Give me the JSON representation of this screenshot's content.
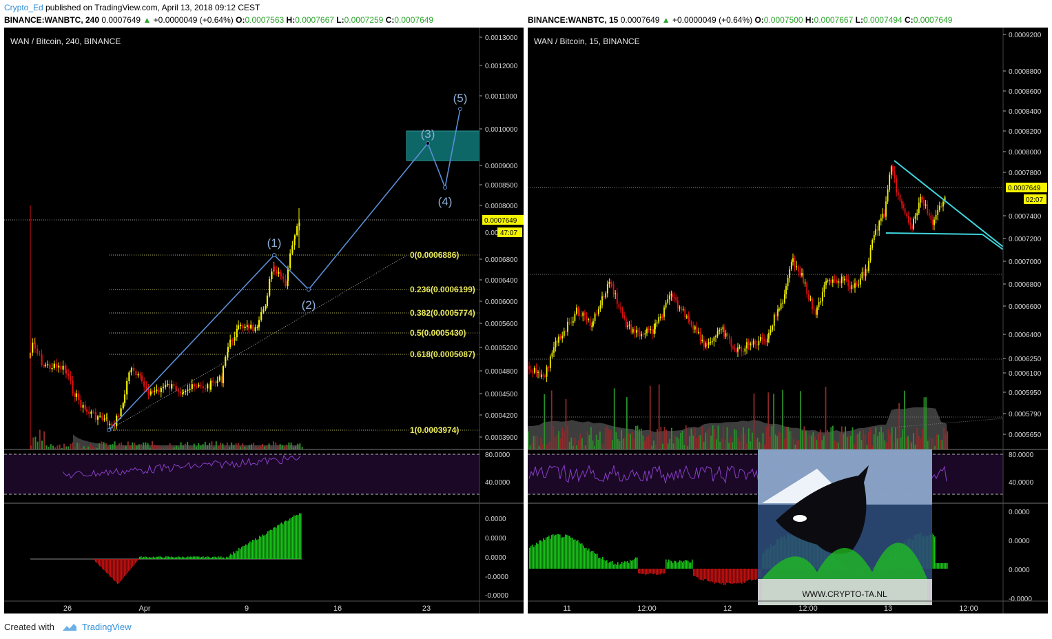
{
  "header": {
    "author": "Crypto_Ed",
    "published_text": "published on TradingView.com, April 13, 2018 09:12 CEST"
  },
  "left": {
    "ticker": "BINANCE:WANBTC, 240",
    "price": "0.0007649",
    "change": "+0.0000049 (+0.64%)",
    "open": "0.0007563",
    "high": "0.0007667",
    "low": "0.0007259",
    "close": "0.0007649",
    "legend": "WAN / Bitcoin, 240, BINANCE",
    "last_price_label": "0.0007649",
    "countdown": "47:07"
  },
  "right": {
    "ticker": "BINANCE:WANBTC, 15",
    "price": "0.0007649",
    "change": "+0.0000049 (+0.64%)",
    "open": "0.0007500",
    "high": "0.0007667",
    "low": "0.0007494",
    "close": "0.0007649",
    "legend": "WAN / Bitcoin, 15, BINANCE",
    "last_price_label": "0.0007649",
    "countdown": "02:07",
    "watermark": "WWW.CRYPTO-TA.NL"
  },
  "footer": {
    "created_with": "Created with",
    "brand": "TradingView"
  },
  "colors": {
    "bull": "#f5f500",
    "bear": "#e01010",
    "wave": "#5b8fd6",
    "fib": "#e8e85a",
    "triangle": "#3fd6e0",
    "rsi": "#8a3ec8",
    "macd_up": "#18c018",
    "macd_down": "#c01010"
  },
  "chart_data": [
    {
      "type": "candlestick",
      "title": "WAN / Bitcoin, 240, BINANCE",
      "y_ticks": [
        "0.0013000",
        "0.0012000",
        "0.0011000",
        "0.0010000",
        "0.0009000",
        "0.0008500",
        "0.0008000",
        "0.0007649",
        "0.0006800",
        "0.0006400",
        "0.0006000",
        "0.0005600",
        "0.0005200",
        "0.0004800",
        "0.0004500",
        "0.0004200",
        "0.0003900"
      ],
      "x_ticks": [
        "26",
        "Apr",
        "9",
        "16",
        "23"
      ],
      "fib_levels": [
        {
          "label": "0(0.0006886)",
          "value": 0.0006886
        },
        {
          "label": "0.236(0.0006199)",
          "value": 0.0006199
        },
        {
          "label": "0.382(0.0005774)",
          "value": 0.0005774
        },
        {
          "label": "0.5(0.0005430)",
          "value": 0.000543
        },
        {
          "label": "0.618(0.0005087)",
          "value": 0.0005087
        },
        {
          "label": "1(0.0003974)",
          "value": 0.0003974
        }
      ],
      "wave_labels": [
        "(1)",
        "(2)",
        "(3)",
        "(4)",
        "(5)"
      ],
      "rsi_ticks": [
        "80.0000",
        "40.0000"
      ],
      "macd_ticks": [
        "0.0000",
        "0.0000",
        "0.0000",
        "-0.0000",
        "-0.0000"
      ]
    },
    {
      "type": "candlestick",
      "title": "WAN / Bitcoin, 15, BINANCE",
      "y_ticks": [
        "0.0009200",
        "0.0008800",
        "0.0008600",
        "0.0008400",
        "0.0008200",
        "0.0008000",
        "0.0007800",
        "0.0007649",
        "0.0007400",
        "0.0007200",
        "0.0007000",
        "0.0006800",
        "0.0006600",
        "0.0006400",
        "0.0006250",
        "0.0006100",
        "0.0005950",
        "0.0005790",
        "0.0005650"
      ],
      "x_ticks": [
        "11",
        "12:00",
        "12",
        "12:00",
        "13",
        "12:00"
      ],
      "rsi_ticks": [
        "80.0000",
        "40.0000"
      ],
      "macd_ticks": [
        "0.0000",
        "0.0000",
        "0.0000",
        "-0.0000"
      ]
    }
  ]
}
